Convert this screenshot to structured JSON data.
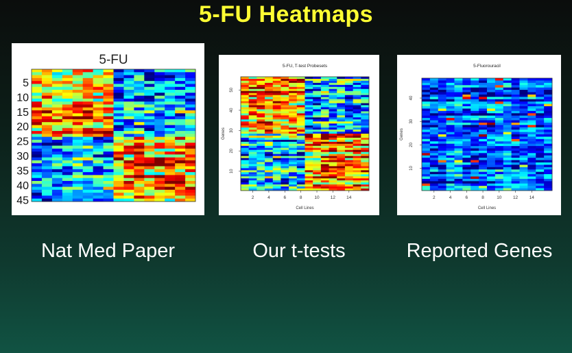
{
  "slide": {
    "title": "5-FU Heatmaps",
    "captions": [
      "Nat Med Paper",
      "Our t-tests",
      "Reported Genes"
    ]
  },
  "colors": {
    "title": "#ffff33",
    "caption": "#ffffff",
    "jet_scale": [
      "#00008f",
      "#0000ff",
      "#0080ff",
      "#00ffff",
      "#80ff80",
      "#ffff00",
      "#ff8000",
      "#ff0000",
      "#800000"
    ]
  },
  "chart_data": [
    {
      "type": "heatmap",
      "title": "5-FU",
      "xlabel": "",
      "ylabel": "",
      "y_ticks": [
        5,
        10,
        15,
        20,
        25,
        30,
        35,
        40,
        45
      ],
      "x_ticks": [],
      "n_rows": 45,
      "n_cols": 16,
      "colormap": "jet",
      "pattern": "left half high (red/yellow) in upper rows, right half high in lower rows"
    },
    {
      "type": "heatmap",
      "title": "5-FU, T-test Probesets",
      "xlabel": "Cell Lines",
      "ylabel": "Genes",
      "x_ticks": [
        2,
        4,
        6,
        8,
        10,
        12,
        14
      ],
      "y_ticks": [
        10,
        20,
        30,
        40,
        50
      ],
      "n_rows": 56,
      "n_cols": 16,
      "colormap": "jet",
      "pattern": "left half high in upper rows, right half high in lower rows"
    },
    {
      "type": "heatmap",
      "title": "5-Fluorouracil",
      "xlabel": "Cell Lines",
      "ylabel": "Genes",
      "x_ticks": [
        2,
        4,
        6,
        8,
        10,
        12,
        14
      ],
      "y_ticks": [
        10,
        20,
        30,
        40
      ],
      "n_rows": 48,
      "n_cols": 16,
      "colormap": "jet",
      "pattern": "mostly low (blue) with scattered high values"
    }
  ]
}
